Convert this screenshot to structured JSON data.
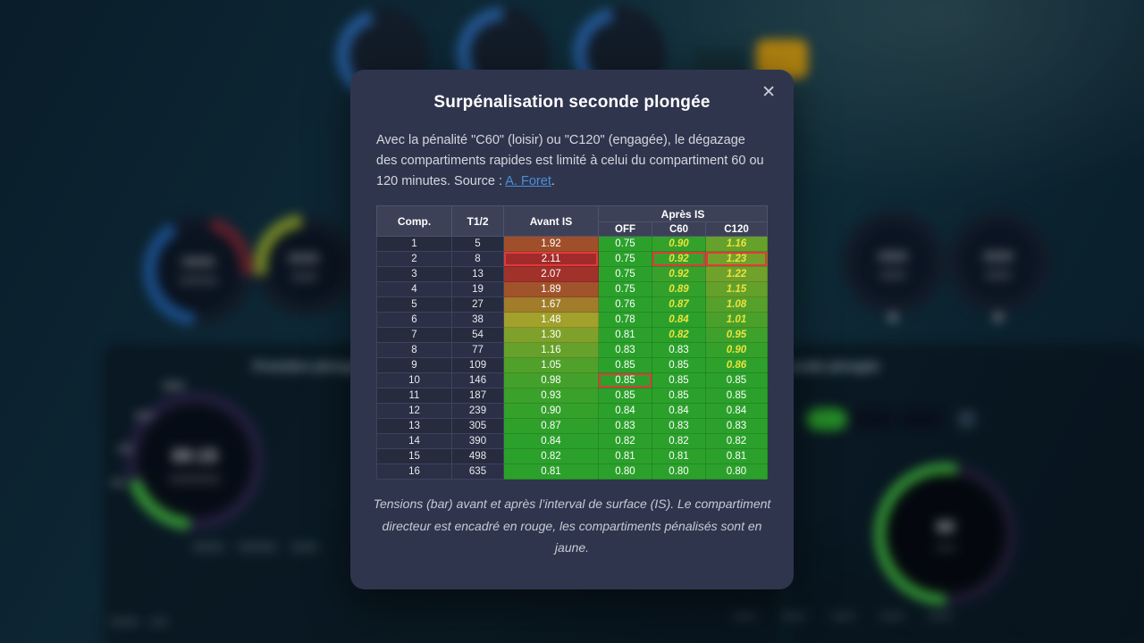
{
  "modal": {
    "title": "Surpénalisation seconde plongée",
    "close_label": "✕",
    "description": {
      "before_link": "Avec la pénalité \"C60\" (loisir) ou \"C120\" (engagée), le dégazage des compartiments rapides est limité à celui du compartiment 60 ou 120 minutes. Source : ",
      "link_text": "A. Foret",
      "after_link": "."
    },
    "table": {
      "headers": {
        "comp": "Comp.",
        "t12": "T1/2",
        "avant": "Avant IS",
        "apres_group": "Après IS",
        "off": "OFF",
        "c60": "C60",
        "c120": "C120"
      },
      "rows": [
        {
          "comp": "1",
          "t12": "5",
          "avant": {
            "v": 1.92
          },
          "off": {
            "v": 0.75
          },
          "c60": {
            "v": 0.9,
            "pen": true
          },
          "c120": {
            "v": 1.16,
            "pen": true
          }
        },
        {
          "comp": "2",
          "t12": "8",
          "avant": {
            "v": 2.11,
            "lead": true
          },
          "off": {
            "v": 0.75
          },
          "c60": {
            "v": 0.92,
            "pen": true,
            "lead": true
          },
          "c120": {
            "v": 1.23,
            "pen": true,
            "lead": true
          }
        },
        {
          "comp": "3",
          "t12": "13",
          "avant": {
            "v": 2.07
          },
          "off": {
            "v": 0.75
          },
          "c60": {
            "v": 0.92,
            "pen": true
          },
          "c120": {
            "v": 1.22,
            "pen": true
          }
        },
        {
          "comp": "4",
          "t12": "19",
          "avant": {
            "v": 1.89
          },
          "off": {
            "v": 0.75
          },
          "c60": {
            "v": 0.89,
            "pen": true
          },
          "c120": {
            "v": 1.15,
            "pen": true
          }
        },
        {
          "comp": "5",
          "t12": "27",
          "avant": {
            "v": 1.67
          },
          "off": {
            "v": 0.76
          },
          "c60": {
            "v": 0.87,
            "pen": true
          },
          "c120": {
            "v": 1.08,
            "pen": true
          }
        },
        {
          "comp": "6",
          "t12": "38",
          "avant": {
            "v": 1.48
          },
          "off": {
            "v": 0.78
          },
          "c60": {
            "v": 0.84,
            "pen": true
          },
          "c120": {
            "v": 1.01,
            "pen": true
          }
        },
        {
          "comp": "7",
          "t12": "54",
          "avant": {
            "v": 1.3
          },
          "off": {
            "v": 0.81
          },
          "c60": {
            "v": 0.82,
            "pen": true
          },
          "c120": {
            "v": 0.95,
            "pen": true
          }
        },
        {
          "comp": "8",
          "t12": "77",
          "avant": {
            "v": 1.16
          },
          "off": {
            "v": 0.83
          },
          "c60": {
            "v": 0.83
          },
          "c120": {
            "v": 0.9,
            "pen": true
          }
        },
        {
          "comp": "9",
          "t12": "109",
          "avant": {
            "v": 1.05
          },
          "off": {
            "v": 0.85
          },
          "c60": {
            "v": 0.85
          },
          "c120": {
            "v": 0.86,
            "pen": true
          }
        },
        {
          "comp": "10",
          "t12": "146",
          "avant": {
            "v": 0.98
          },
          "off": {
            "v": 0.85,
            "lead": true
          },
          "c60": {
            "v": 0.85
          },
          "c120": {
            "v": 0.85
          }
        },
        {
          "comp": "11",
          "t12": "187",
          "avant": {
            "v": 0.93
          },
          "off": {
            "v": 0.85
          },
          "c60": {
            "v": 0.85
          },
          "c120": {
            "v": 0.85
          }
        },
        {
          "comp": "12",
          "t12": "239",
          "avant": {
            "v": 0.9
          },
          "off": {
            "v": 0.84
          },
          "c60": {
            "v": 0.84
          },
          "c120": {
            "v": 0.84
          }
        },
        {
          "comp": "13",
          "t12": "305",
          "avant": {
            "v": 0.87
          },
          "off": {
            "v": 0.83
          },
          "c60": {
            "v": 0.83
          },
          "c120": {
            "v": 0.83
          }
        },
        {
          "comp": "14",
          "t12": "390",
          "avant": {
            "v": 0.84
          },
          "off": {
            "v": 0.82
          },
          "c60": {
            "v": 0.82
          },
          "c120": {
            "v": 0.82
          }
        },
        {
          "comp": "15",
          "t12": "498",
          "avant": {
            "v": 0.82
          },
          "off": {
            "v": 0.81
          },
          "c60": {
            "v": 0.81
          },
          "c120": {
            "v": 0.81
          }
        },
        {
          "comp": "16",
          "t12": "635",
          "avant": {
            "v": 0.81
          },
          "off": {
            "v": 0.8
          },
          "c60": {
            "v": 0.8
          },
          "c120": {
            "v": 0.8
          }
        }
      ]
    },
    "caption": "Tensions (bar) avant et après l’interval de surface (IS). Le compartiment directeur est encadré en rouge, les compartiments pénalisés sont en jaune."
  },
  "background": {
    "left_panel_title": "Première plongée",
    "right_panel_title": "Seconde plongée",
    "dive_timer_value": "00:15",
    "right_gauge_value": "60"
  },
  "colors": {
    "penalized_text": "#ece23e",
    "directing_border": "#e03a3a",
    "green_base": "#2ba22b",
    "red_base": "#a22b2b",
    "link": "#4a90d9"
  }
}
